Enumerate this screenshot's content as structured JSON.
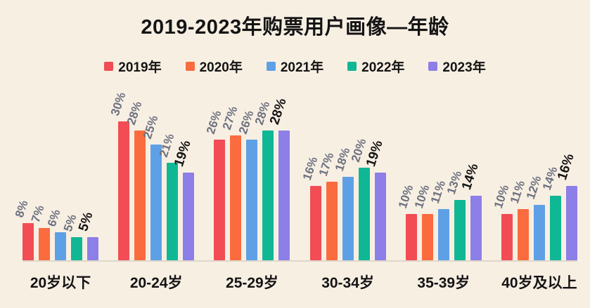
{
  "title": "2019-2023年购票用户画像—年龄",
  "colors": {
    "background": "#f8efe3",
    "axis_line": "#ddd6c9",
    "label_gray": "#6d7280",
    "label_black": "#141414"
  },
  "chart_data": {
    "type": "bar",
    "title": "2019-2023年购票用户画像—年龄",
    "categories": [
      "20岁以下",
      "20-24岁",
      "25-29岁",
      "30-34岁",
      "35-39岁",
      "40岁及以上"
    ],
    "series": [
      {
        "name": "2019年",
        "color": "#f24c54",
        "values": [
          8,
          30,
          26,
          16,
          10,
          10
        ]
      },
      {
        "name": "2020年",
        "color": "#fa6c3e",
        "values": [
          7,
          28,
          27,
          17,
          10,
          11
        ]
      },
      {
        "name": "2021年",
        "color": "#5ea0e6",
        "values": [
          6,
          25,
          26,
          18,
          11,
          12
        ]
      },
      {
        "name": "2022年",
        "color": "#10b795",
        "values": [
          5,
          21,
          28,
          20,
          13,
          14
        ]
      },
      {
        "name": "2023年",
        "color": "#8c7fe8",
        "values": [
          5,
          19,
          28,
          19,
          14,
          16
        ]
      }
    ],
    "value_suffix": "%",
    "value_labels": "rotated, above bars; last series emphasized in black bold",
    "ylim": [
      0,
      32
    ],
    "xlabel": "",
    "ylabel": "",
    "grid": false,
    "legend_position": "top-center"
  }
}
